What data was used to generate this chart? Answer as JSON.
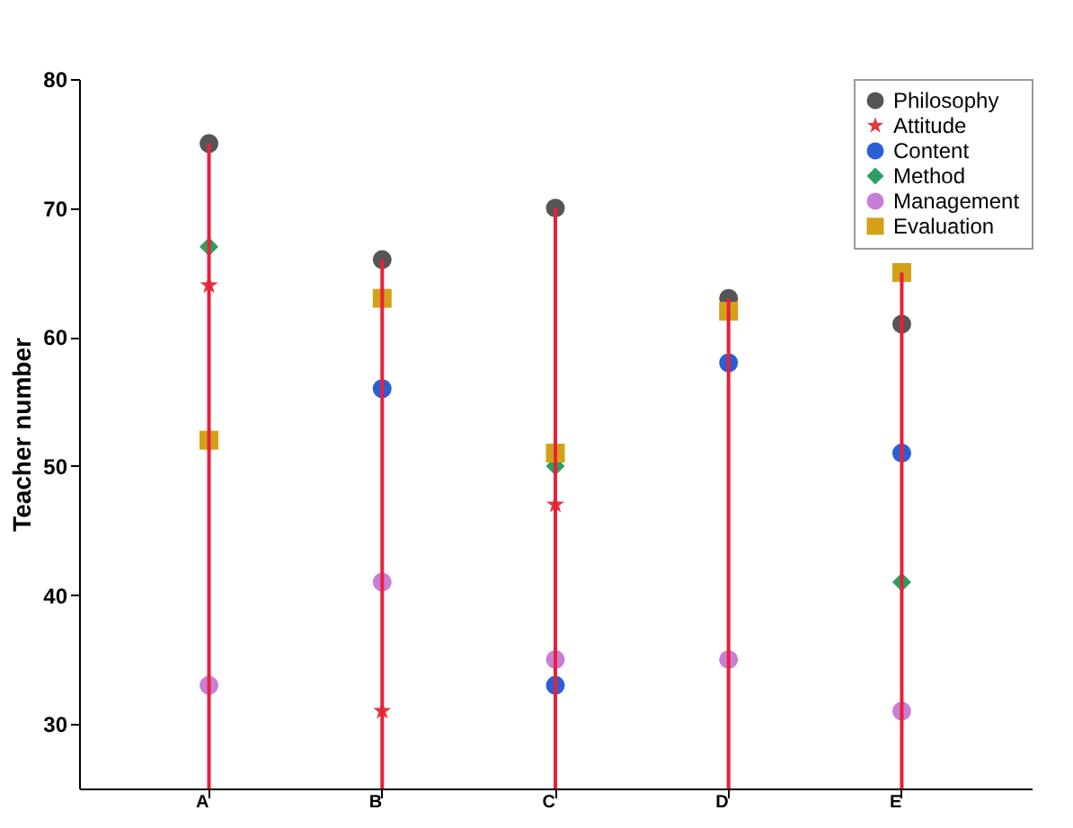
{
  "chart_data": {
    "type": "scatter",
    "ylabel": "Teacher number",
    "categories": [
      "A",
      "B",
      "C",
      "D",
      "E"
    ],
    "ylim": [
      25,
      80
    ],
    "yticks": [
      30,
      40,
      50,
      60,
      70,
      80
    ],
    "grid": false,
    "legend": "top right",
    "series": [
      {
        "type": "bar",
        "color": "#e8203a",
        "values": [
          75,
          66,
          70,
          63,
          65
        ]
      },
      {
        "name": "Philosophy",
        "color": "#555555",
        "marker": "circle",
        "values": [
          75,
          66,
          70,
          63,
          61
        ]
      },
      {
        "name": "Attitude",
        "color": "#e0393e",
        "marker": "star",
        "values": [
          64,
          31,
          47,
          null,
          null
        ]
      },
      {
        "name": "Content",
        "color": "#2a5fd6",
        "marker": "circle",
        "values": [
          null,
          56,
          33,
          58,
          51
        ]
      },
      {
        "name": "Method",
        "color": "#2e9e5e",
        "marker": "diamond",
        "values": [
          67,
          null,
          50,
          null,
          41
        ]
      },
      {
        "name": "Management",
        "color": "#c77fd6",
        "marker": "circle",
        "values": [
          33,
          41,
          35,
          35,
          31
        ]
      },
      {
        "name": "Evaluation",
        "color": "#d4a017",
        "marker": "square",
        "values": [
          52,
          63,
          51,
          62,
          65
        ]
      }
    ]
  }
}
